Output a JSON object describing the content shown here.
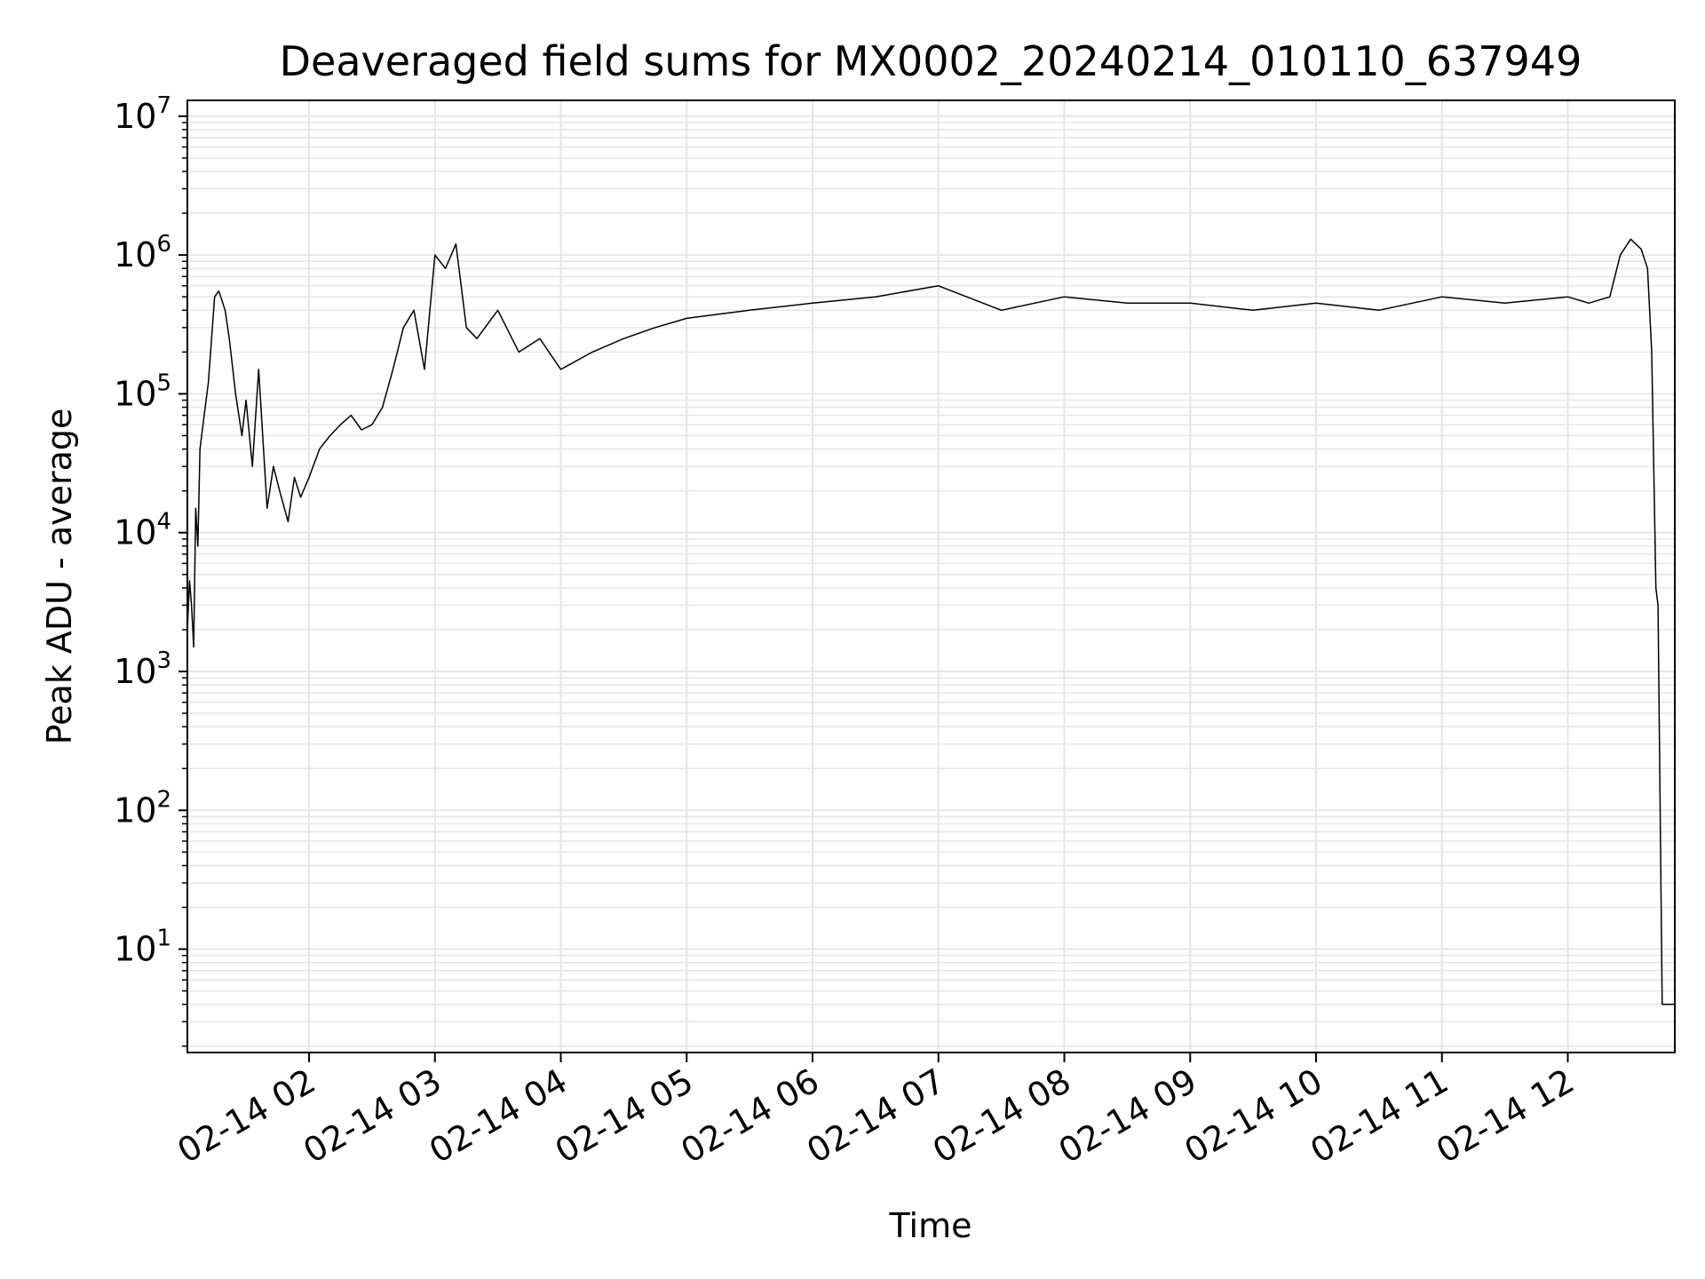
{
  "chart_data": {
    "type": "line",
    "title": "Deaveraged field sums for MX0002_20240214_010110_637949",
    "xlabel": "Time",
    "ylabel": "Peak ADU - average",
    "y_scale": "log",
    "ylim": [
      1.8,
      13000000
    ],
    "xlim": [
      "02-14 01:02",
      "02-14 12:51"
    ],
    "grid": true,
    "line_color": "#000000",
    "grid_color": "#e6e6e6",
    "x_tick_labels": [
      "02-14 02",
      "02-14 03",
      "02-14 04",
      "02-14 05",
      "02-14 06",
      "02-14 07",
      "02-14 08",
      "02-14 09",
      "02-14 10",
      "02-14 11",
      "02-14 12"
    ],
    "y_tick_labels": [
      {
        "base": "10",
        "exp": "1"
      },
      {
        "base": "10",
        "exp": "2"
      },
      {
        "base": "10",
        "exp": "3"
      },
      {
        "base": "10",
        "exp": "4"
      },
      {
        "base": "10",
        "exp": "5"
      },
      {
        "base": "10",
        "exp": "6"
      },
      {
        "base": "10",
        "exp": "7"
      }
    ],
    "series": [
      {
        "x": [
          "02-14 01:02",
          "02-14 01:03",
          "02-14 01:04",
          "02-14 01:05",
          "02-14 01:06",
          "02-14 01:07",
          "02-14 01:08",
          "02-14 01:10",
          "02-14 01:12",
          "02-14 01:15",
          "02-14 01:17",
          "02-14 01:20",
          "02-14 01:22",
          "02-14 01:25",
          "02-14 01:28",
          "02-14 01:30",
          "02-14 01:33",
          "02-14 01:36",
          "02-14 01:40",
          "02-14 01:43",
          "02-14 01:46",
          "02-14 01:50",
          "02-14 01:53",
          "02-14 01:56",
          "02-14 02:00",
          "02-14 02:05",
          "02-14 02:10",
          "02-14 02:15",
          "02-14 02:20",
          "02-14 02:25",
          "02-14 02:30",
          "02-14 02:35",
          "02-14 02:40",
          "02-14 02:45",
          "02-14 02:50",
          "02-14 02:55",
          "02-14 03:00",
          "02-14 03:05",
          "02-14 03:10",
          "02-14 03:15",
          "02-14 03:20",
          "02-14 03:30",
          "02-14 03:40",
          "02-14 03:50",
          "02-14 04:00",
          "02-14 04:15",
          "02-14 04:30",
          "02-14 04:45",
          "02-14 05:00",
          "02-14 05:30",
          "02-14 06:00",
          "02-14 06:30",
          "02-14 07:00",
          "02-14 07:30",
          "02-14 08:00",
          "02-14 08:30",
          "02-14 09:00",
          "02-14 09:30",
          "02-14 10:00",
          "02-14 10:30",
          "02-14 11:00",
          "02-14 11:30",
          "02-14 12:00",
          "02-14 12:10",
          "02-14 12:20",
          "02-14 12:25",
          "02-14 12:30",
          "02-14 12:35",
          "02-14 12:38",
          "02-14 12:40",
          "02-14 12:42",
          "02-14 12:43",
          "02-14 12:45",
          "02-14 12:48",
          "02-14 12:51"
        ],
        "y": [
          2000,
          4500,
          3000,
          1500,
          15000,
          8000,
          40000,
          70000,
          120000,
          500000,
          550000,
          400000,
          250000,
          100000,
          50000,
          90000,
          30000,
          150000,
          15000,
          30000,
          20000,
          12000,
          25000,
          18000,
          25000,
          40000,
          50000,
          60000,
          70000,
          55000,
          60000,
          80000,
          150000,
          300000,
          400000,
          150000,
          1000000,
          800000,
          1200000,
          300000,
          250000,
          400000,
          200000,
          250000,
          150000,
          200000,
          250000,
          300000,
          350000,
          400000,
          450000,
          500000,
          600000,
          400000,
          500000,
          450000,
          450000,
          400000,
          450000,
          400000,
          500000,
          450000,
          500000,
          450000,
          500000,
          1000000,
          1300000,
          1100000,
          800000,
          200000,
          4000,
          3000,
          4,
          4,
          4
        ]
      }
    ]
  }
}
